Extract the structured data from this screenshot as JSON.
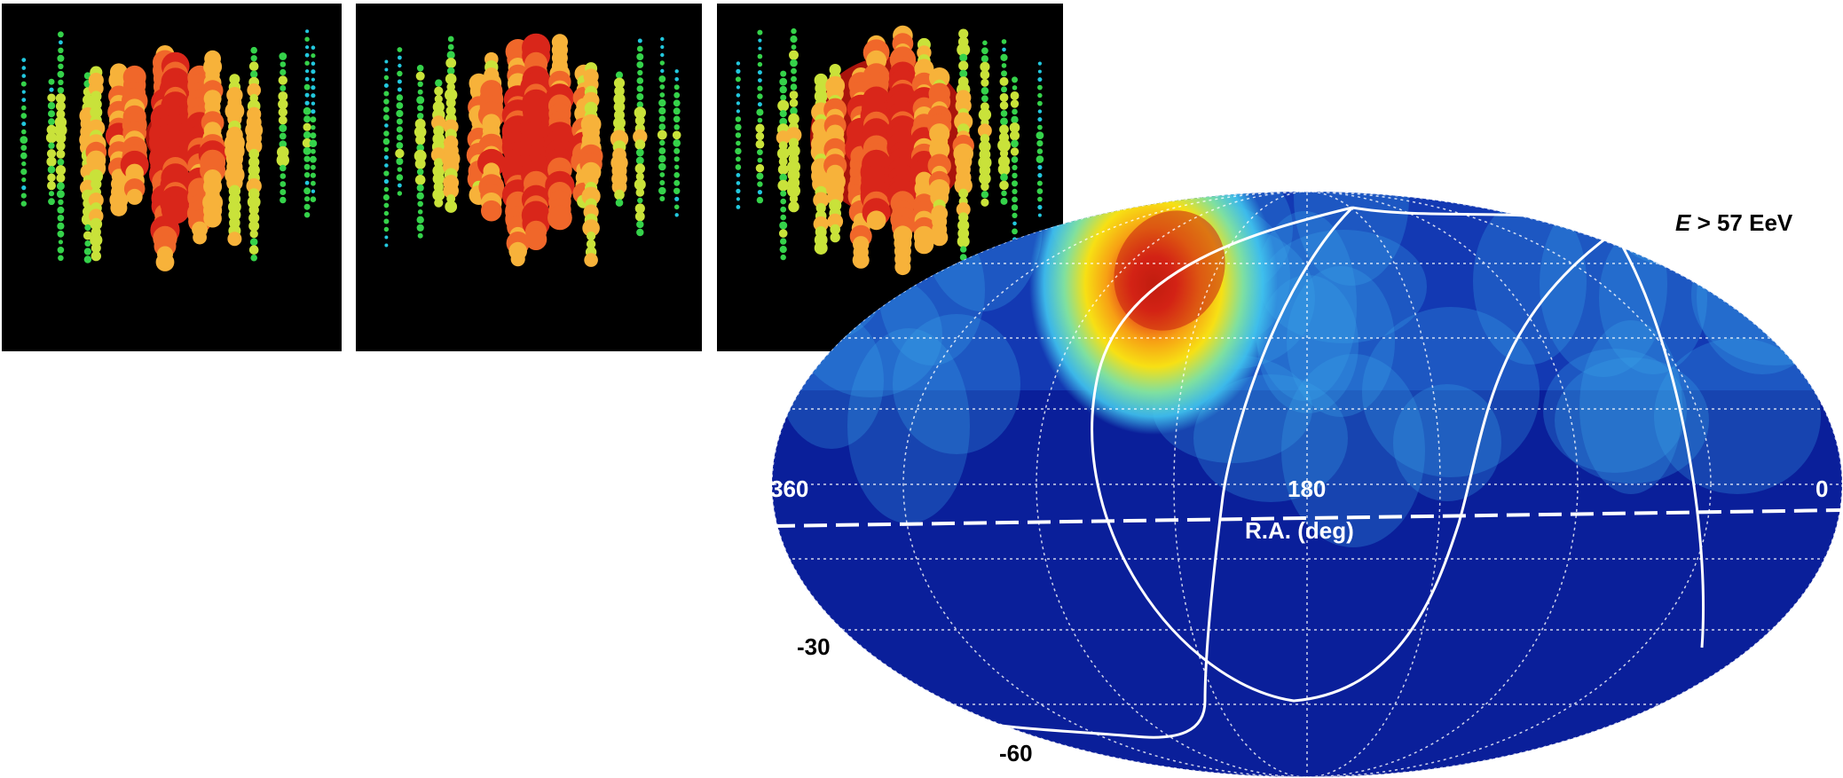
{
  "panels": [
    {
      "name": "event-display-1",
      "palette": "rainbow-hits",
      "central_glow": "#e0271b"
    },
    {
      "name": "event-display-2",
      "palette": "rainbow-hits",
      "central_glow": "#e0271b"
    },
    {
      "name": "event-display-3",
      "palette": "rainbow-hits",
      "central_glow": "#e0271b"
    }
  ],
  "skymap": {
    "energy_label": {
      "italic": "E",
      "text": " > 57 EeV"
    },
    "ra_label": "R.A. (deg)",
    "ra_ticks": [
      "360",
      "180",
      "0"
    ],
    "dec_ticks": [
      "-30",
      "-60"
    ],
    "background_color": "#0a1f9a",
    "hotspot_colors": [
      "#e0271b",
      "#f7e014",
      "#40c4ee"
    ]
  }
}
